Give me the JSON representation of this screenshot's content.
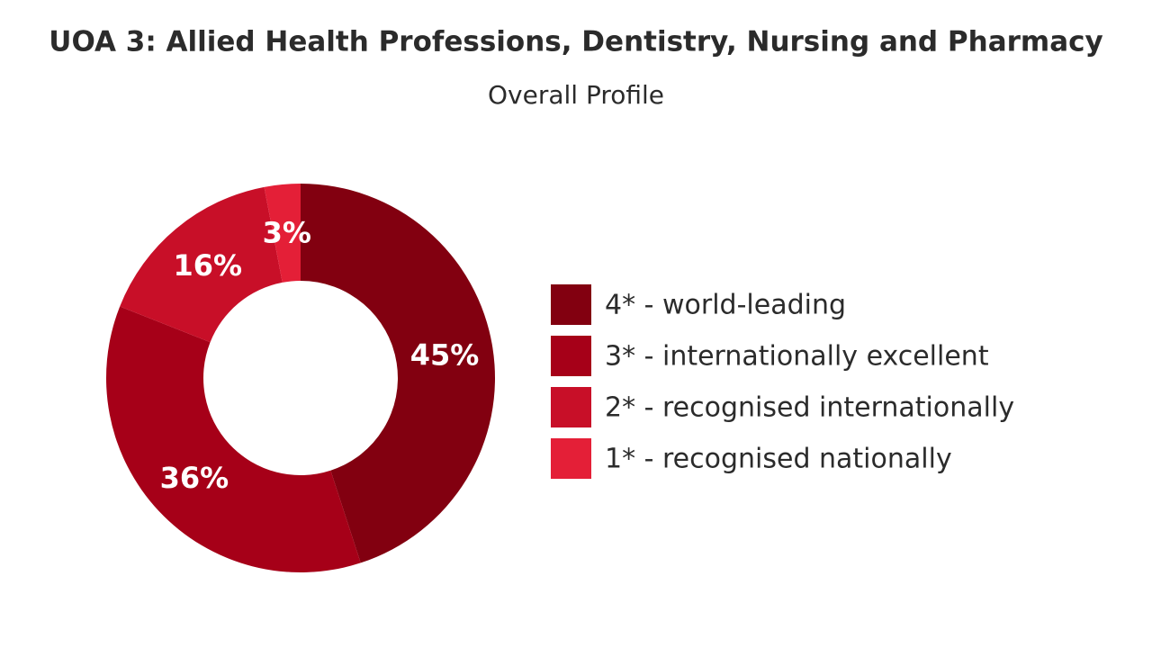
{
  "chart_data": {
    "type": "donut",
    "title": "UOA 3: Allied Health Professions, Dentistry, Nursing and Pharmacy",
    "subtitle": "Overall Profile",
    "categories": [
      "4* - world-leading",
      "3* - internationally excellent",
      "2* - recognised internationally",
      "1* - recognised nationally"
    ],
    "values": [
      45,
      36,
      16,
      3
    ],
    "value_labels": [
      "45%",
      "36%",
      "16%",
      "3%"
    ],
    "colors": [
      "#820010",
      "#a60018",
      "#c80f28",
      "#e41f37"
    ],
    "legend": "right"
  }
}
